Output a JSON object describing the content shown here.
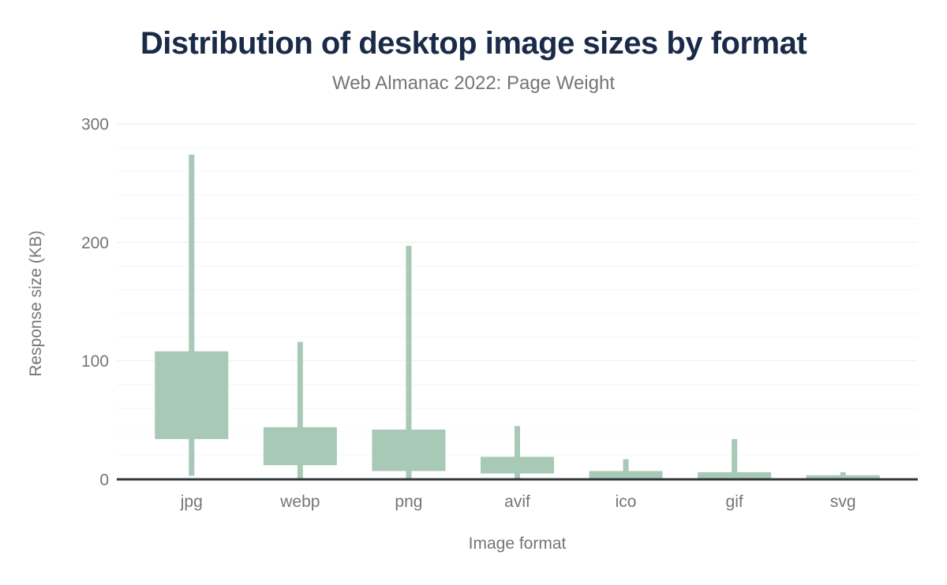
{
  "header": {
    "title": "Distribution of desktop image sizes by format",
    "subtitle": "Web Almanac 2022: Page Weight"
  },
  "chart_data": {
    "type": "boxplot",
    "title": "Distribution of desktop image sizes by format",
    "subtitle": "Web Almanac 2022: Page Weight",
    "xlabel": "Image format",
    "ylabel": "Response size (KB)",
    "units": "KB",
    "ylim": [
      0,
      300
    ],
    "yticks": [
      0,
      100,
      200,
      300
    ],
    "minor_gridline_step": 20,
    "grid": "horizontal",
    "legend": "none",
    "categories": [
      "jpg",
      "webp",
      "png",
      "avif",
      "ico",
      "gif",
      "svg"
    ],
    "series": [
      {
        "name": "jpg",
        "p10": 3,
        "p25": 34,
        "p75": 108,
        "p90": 274
      },
      {
        "name": "webp",
        "p10": 1,
        "p25": 12,
        "p75": 44,
        "p90": 116
      },
      {
        "name": "png",
        "p10": 1,
        "p25": 7,
        "p75": 42,
        "p90": 197
      },
      {
        "name": "avif",
        "p10": 1,
        "p25": 5,
        "p75": 19,
        "p90": 45
      },
      {
        "name": "ico",
        "p10": 1,
        "p25": 1,
        "p75": 7,
        "p90": 17
      },
      {
        "name": "gif",
        "p10": 0,
        "p25": 1,
        "p75": 6,
        "p90": 34
      },
      {
        "name": "svg",
        "p10": 0,
        "p25": 1,
        "p75": 3.5,
        "p90": 6
      }
    ],
    "colors": {
      "box": "#a7c9b6",
      "axis_line": "#32383e",
      "grid_major": "#ebeeee",
      "grid_minor": "#f5f6f6",
      "tick_text": "#757575",
      "title_text": "#1a2b49",
      "subtitle_text": "#757575",
      "background": "#ffffff"
    }
  }
}
